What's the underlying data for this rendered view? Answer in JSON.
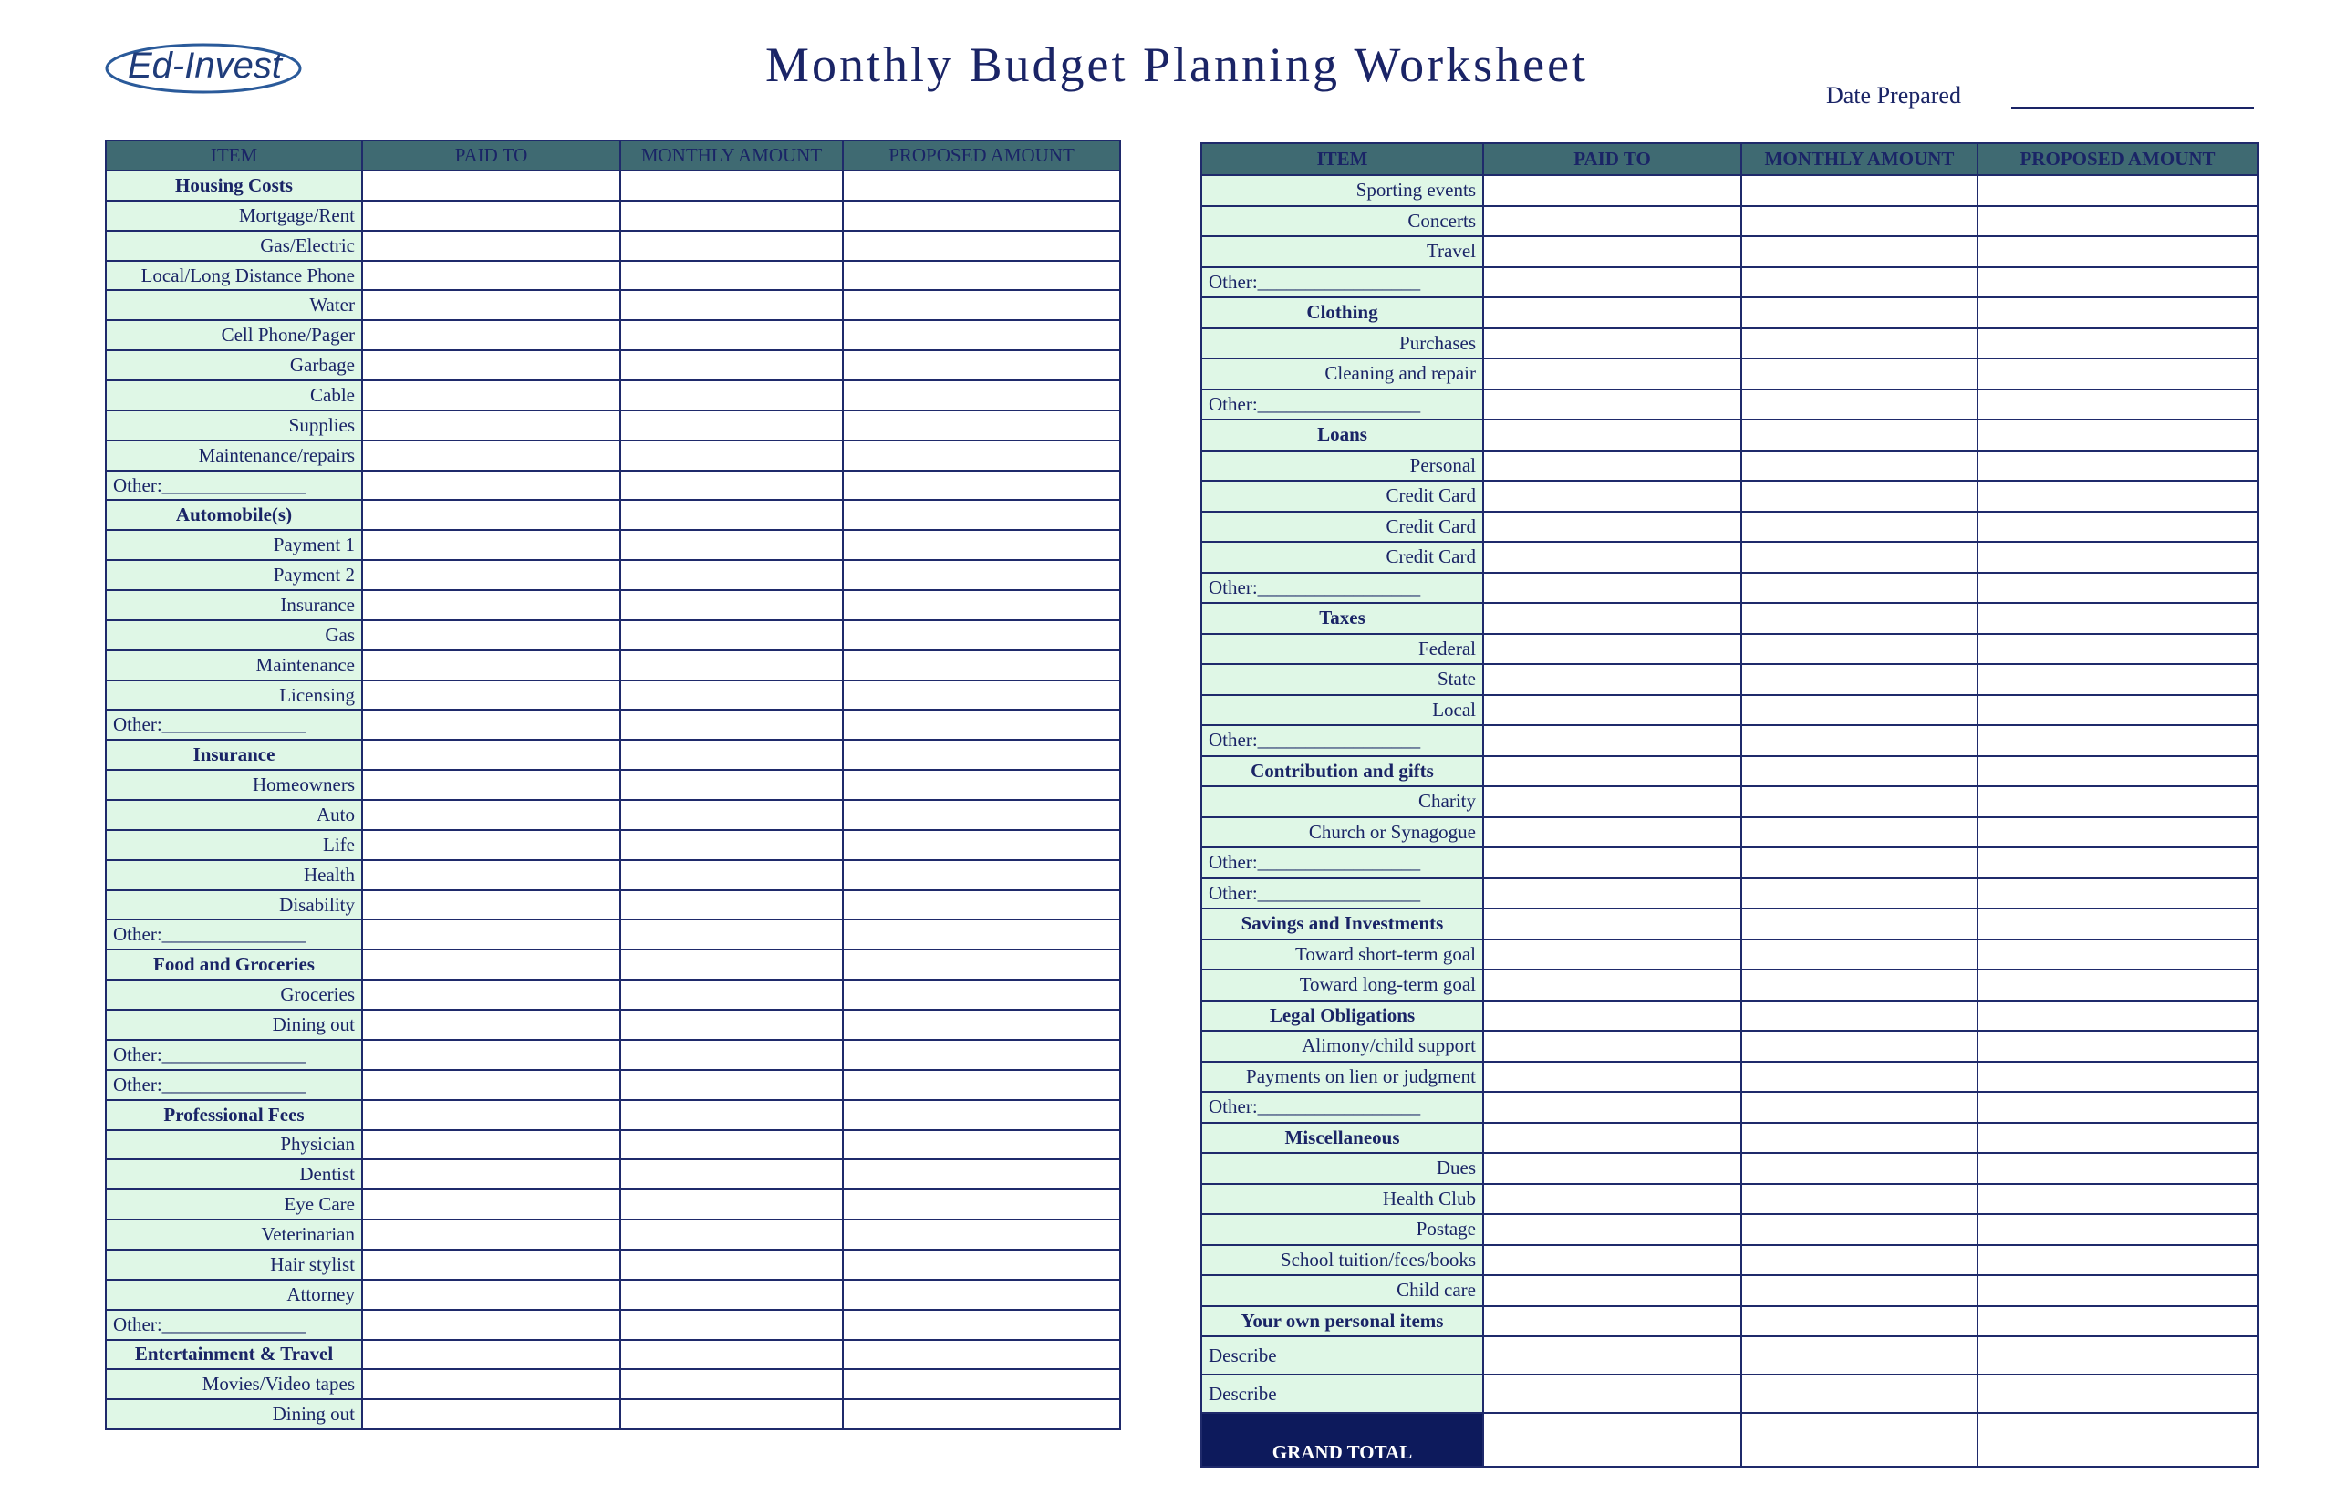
{
  "header": {
    "logo": "Ed-Invest",
    "title": "Monthly Budget Planning Worksheet",
    "date_label": "Date Prepared"
  },
  "left_table": {
    "columns": [
      "ITEM",
      "PAID TO",
      "MONTHLY AMOUNT",
      "PROPOSED AMOUNT"
    ],
    "sections": [
      {
        "heading": "Housing Costs",
        "items": [
          "Mortgage/Rent",
          "Gas/Electric",
          "Local/Long Distance Phone",
          "Water",
          "Cell Phone/Pager",
          "Garbage",
          "Cable",
          "Supplies",
          "Maintenance/repairs"
        ],
        "other": [
          "Other:_______________"
        ]
      },
      {
        "heading": "Automobile(s)",
        "items": [
          "Payment 1",
          "Payment 2",
          "Insurance",
          "Gas",
          "Maintenance",
          "Licensing"
        ],
        "other": [
          "Other:_______________"
        ]
      },
      {
        "heading": "Insurance",
        "items": [
          "Homeowners",
          "Auto",
          "Life",
          "Health",
          "Disability"
        ],
        "other": [
          "Other:_______________"
        ]
      },
      {
        "heading": "Food and Groceries",
        "items": [
          "Groceries",
          "Dining out"
        ],
        "other": [
          "Other:_______________",
          "Other:_______________"
        ]
      },
      {
        "heading": "Professional Fees",
        "items": [
          "Physician",
          "Dentist",
          "Eye Care",
          "Veterinarian",
          "Hair stylist",
          "Attorney"
        ],
        "other": [
          "Other:_______________"
        ]
      },
      {
        "heading": "Entertainment & Travel",
        "items": [
          "Movies/Video tapes",
          "Dining out"
        ],
        "other": []
      }
    ]
  },
  "right_table": {
    "columns": [
      "ITEM",
      "PAID TO",
      "MONTHLY AMOUNT",
      "PROPOSED AMOUNT"
    ],
    "sections": [
      {
        "items": [
          "Sporting events",
          "Concerts",
          "Travel"
        ],
        "other": [
          "Other:_________________"
        ]
      },
      {
        "heading": "Clothing",
        "items": [
          "Purchases",
          "Cleaning and repair"
        ],
        "other": [
          "Other:_________________"
        ]
      },
      {
        "heading": "Loans",
        "items": [
          "Personal",
          "Credit Card",
          "Credit Card",
          "Credit Card"
        ],
        "other": [
          "Other:_________________"
        ]
      },
      {
        "heading": "Taxes",
        "items": [
          "Federal",
          "State",
          "Local"
        ],
        "other": [
          "Other:_________________"
        ]
      },
      {
        "heading": "Contribution and gifts",
        "items": [
          "Charity",
          "Church or Synagogue"
        ],
        "other": [
          "Other:_________________",
          "Other:_________________"
        ]
      },
      {
        "heading": "Savings and Investments",
        "items": [
          "Toward short-term goal",
          "Toward long-term goal"
        ],
        "other": []
      },
      {
        "heading": "Legal Obligations",
        "items": [
          "Alimony/child support",
          "Payments on lien or judgment"
        ],
        "other": [
          "Other:_________________"
        ]
      },
      {
        "heading": "Miscellaneous",
        "items": [
          "Dues",
          "Health Club",
          "Postage",
          "School tuition/fees/books",
          "Child care"
        ],
        "other": []
      },
      {
        "heading": "Your own personal items",
        "items": [],
        "other": [
          "Describe",
          "Describe"
        ]
      }
    ],
    "total_label": "GRAND TOTAL"
  }
}
